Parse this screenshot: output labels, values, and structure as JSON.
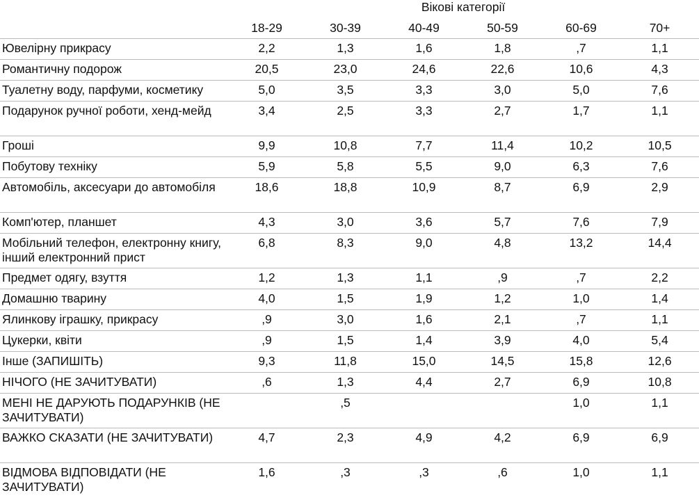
{
  "table": {
    "group_header": "Вікові категорії",
    "age_groups": [
      "18-29",
      "30-39",
      "40-49",
      "50-59",
      "60-69",
      "70+"
    ],
    "rows": [
      {
        "label": "Ювелірну прикрасу",
        "values": [
          "2,2",
          "1,3",
          "1,6",
          "1,8",
          ",7",
          "1,1"
        ]
      },
      {
        "label": "Романтичну подорож",
        "values": [
          "20,5",
          "23,0",
          "24,6",
          "22,6",
          "10,6",
          "4,3"
        ]
      },
      {
        "label": "Туалетну воду, парфуми, косметику",
        "values": [
          "5,0",
          "3,5",
          "3,3",
          "3,0",
          "5,0",
          "7,6"
        ]
      },
      {
        "label": "Подарунок ручної роботи, хенд-мейд",
        "values": [
          "3,4",
          "2,5",
          "3,3",
          "2,7",
          "1,7",
          "1,1"
        ]
      },
      {
        "label": "Гроші",
        "values": [
          "9,9",
          "10,8",
          "7,7",
          "11,4",
          "10,2",
          "10,5"
        ]
      },
      {
        "label": "Побутову техніку",
        "values": [
          "5,9",
          "5,8",
          "5,5",
          "9,0",
          "6,3",
          "7,6"
        ]
      },
      {
        "label": "Автомобіль, аксесуари до автомобіля",
        "values": [
          "18,6",
          "18,8",
          "10,9",
          "8,7",
          "6,9",
          "2,9"
        ]
      },
      {
        "label": "Комп'ютер, планшет",
        "values": [
          "4,3",
          "3,0",
          "3,6",
          "5,7",
          "7,6",
          "7,9"
        ]
      },
      {
        "label": "Мобільний телефон, електронну книгу, інший електронний прист",
        "values": [
          "6,8",
          "8,3",
          "9,0",
          "4,8",
          "13,2",
          "14,4"
        ]
      },
      {
        "label": "Предмет одягу, взуття",
        "values": [
          "1,2",
          "1,3",
          "1,1",
          ",9",
          ",7",
          "2,2"
        ]
      },
      {
        "label": "Домашню тварину",
        "values": [
          "4,0",
          "1,5",
          "1,9",
          "1,2",
          "1,0",
          "1,4"
        ]
      },
      {
        "label": "Ялинкову іграшку, прикрасу",
        "values": [
          ",9",
          "3,0",
          "1,6",
          "2,1",
          ",7",
          "1,1"
        ]
      },
      {
        "label": "Цукерки, квіти",
        "values": [
          ",9",
          "1,5",
          "1,4",
          "3,9",
          "4,0",
          "5,4"
        ]
      },
      {
        "label": "Інше (ЗАПИШІТЬ)",
        "values": [
          "9,3",
          "11,8",
          "15,0",
          "14,5",
          "15,8",
          "12,6"
        ]
      },
      {
        "label": "НІЧОГО (НЕ ЗАЧИТУВАТИ)",
        "values": [
          ",6",
          "1,3",
          "4,4",
          "2,7",
          "6,9",
          "10,8"
        ]
      },
      {
        "label": "МЕНІ НЕ ДАРУЮТЬ ПОДАРУНКІВ (НЕ ЗАЧИТУВАТИ)",
        "values": [
          "",
          ",5",
          "",
          "",
          "1,0",
          "1,1"
        ]
      },
      {
        "label": "ВАЖКО СКАЗАТИ (НЕ ЗАЧИТУВАТИ)",
        "values": [
          "4,7",
          "2,3",
          "4,9",
          "4,2",
          "6,9",
          "6,9"
        ]
      },
      {
        "label": "ВІДМОВА ВІДПОВІДАТИ (НЕ ЗАЧИТУВАТИ)",
        "values": [
          "1,6",
          ",3",
          ",3",
          ",6",
          "1,0",
          "1,1"
        ]
      }
    ]
  }
}
